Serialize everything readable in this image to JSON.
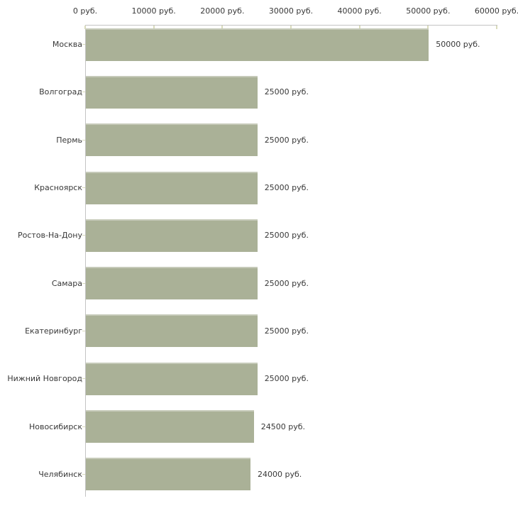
{
  "chart_data": {
    "type": "bar",
    "orientation": "horizontal",
    "title": "",
    "xlabel": "",
    "ylabel": "",
    "unit": "руб.",
    "categories": [
      "Москва",
      "Волгоград",
      "Пермь",
      "Красноярск",
      "Ростов-На-Дону",
      "Самара",
      "Екатеринбург",
      "Нижний Новгород",
      "Новосибирск",
      "Челябинск"
    ],
    "values": [
      50000,
      25000,
      25000,
      25000,
      25000,
      25000,
      25000,
      25000,
      24500,
      24000
    ],
    "value_labels": [
      "50000 руб.",
      "25000 руб.",
      "25000 руб.",
      "25000 руб.",
      "25000 руб.",
      "25000 руб.",
      "25000 руб.",
      "25000 руб.",
      "24500 руб.",
      "24000 руб."
    ],
    "x_ticks": [
      0,
      10000,
      20000,
      30000,
      40000,
      50000,
      60000
    ],
    "x_tick_labels": [
      "0 руб.",
      "10000 руб.",
      "20000 руб.",
      "30000 руб.",
      "40000 руб.",
      "50000 руб.",
      "60000 руб."
    ],
    "xlim": [
      0,
      60000
    ],
    "axis_position": "top",
    "grid": false,
    "legend": false,
    "colors": {
      "bar": "#aab197",
      "bar_highlight": "#c6cab9",
      "axis": "#c3c3c3",
      "tick": "#d9dbbc",
      "text": "#383838",
      "background": "#ffffff"
    }
  }
}
